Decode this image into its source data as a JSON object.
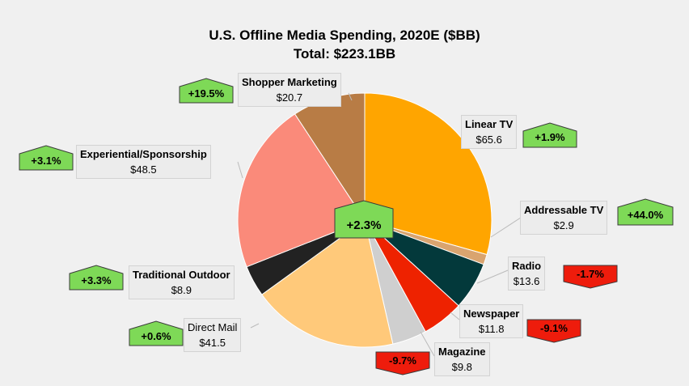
{
  "title_line1": "U.S. Offline Media Spending, 2020E ($BB)",
  "title_line2": "Total: $223.1BB",
  "total_change": "+2.3%",
  "colors": {
    "up": "#7ed957",
    "down": "#ee1c0c"
  },
  "labels": {
    "linear_tv": {
      "name": "Linear TV",
      "value": "$65.6",
      "change": "+1.9%"
    },
    "addressable_tv": {
      "name": "Addressable TV",
      "value": "$2.9",
      "change": "+44.0%"
    },
    "radio": {
      "name": "Radio",
      "value": "$13.6",
      "change": "-1.7%"
    },
    "newspaper": {
      "name": "Newspaper",
      "value": "$11.8",
      "change": "-9.1%"
    },
    "magazine": {
      "name": "Magazine",
      "value": "$9.8",
      "change": "-9.7%"
    },
    "direct_mail": {
      "name": "Direct Mail",
      "value": "$41.5",
      "change": "+0.6%"
    },
    "traditional_outdoor": {
      "name": "Traditional Outdoor",
      "value": "$8.9",
      "change": "+3.3%"
    },
    "experiential": {
      "name": "Experiential/Sponsorship",
      "value": "$48.5",
      "change": "+3.1%"
    },
    "shopper_marketing": {
      "name": "Shopper Marketing",
      "value": "$20.7",
      "change": "+19.5%"
    }
  },
  "chart_data": {
    "type": "pie",
    "title": "U.S. Offline Media Spending, 2020E ($BB)",
    "subtitle": "Total: $223.1BB",
    "unit": "$BB",
    "slices": [
      {
        "name": "Linear TV",
        "value": 65.6,
        "change": "+1.9%",
        "color": "#ffa500"
      },
      {
        "name": "Addressable TV",
        "value": 2.9,
        "change": "+44.0%",
        "color": "#d9a46f"
      },
      {
        "name": "Radio",
        "value": 13.6,
        "change": "-1.7%",
        "color": "#03393b"
      },
      {
        "name": "Newspaper",
        "value": 11.8,
        "change": "-9.1%",
        "color": "#ee2200"
      },
      {
        "name": "Magazine",
        "value": 9.8,
        "change": "-9.7%",
        "color": "#cfcfcf"
      },
      {
        "name": "Direct Mail",
        "value": 41.5,
        "change": "+0.6%",
        "color": "#ffc97a"
      },
      {
        "name": "Traditional Outdoor",
        "value": 8.9,
        "change": "+3.3%",
        "color": "#222222"
      },
      {
        "name": "Experiential/Sponsorship",
        "value": 48.5,
        "change": "+3.1%",
        "color": "#fa8a7a"
      },
      {
        "name": "Shopper Marketing",
        "value": 20.7,
        "change": "+19.5%",
        "color": "#b87c45"
      }
    ]
  }
}
